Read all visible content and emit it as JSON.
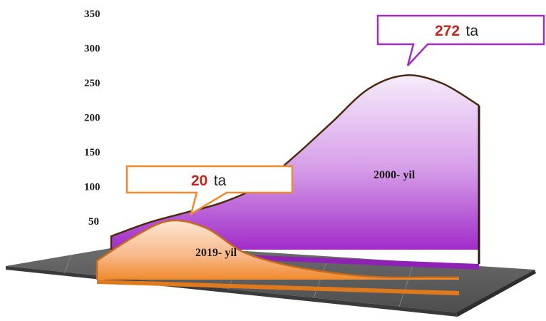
{
  "chart_data": {
    "type": "area",
    "yticks": [
      "350",
      "300",
      "250",
      "200",
      "150",
      "100",
      "50"
    ],
    "ylim": [
      0,
      350
    ],
    "grid": false,
    "series": [
      {
        "name": "2000- yil",
        "color": "#a12cc9",
        "values": [
          20,
          40,
          55,
          70,
          95,
          140,
          190,
          240,
          260,
          248,
          215
        ]
      },
      {
        "name": "2019- yil",
        "color": "#f08a2c",
        "values": [
          8,
          18,
          25,
          22,
          12,
          7,
          4,
          2,
          1,
          1,
          1
        ]
      }
    ],
    "callouts": [
      {
        "value": "20",
        "unit": "ta",
        "border_color": "#f08a2c"
      },
      {
        "value": "272",
        "unit": "ta",
        "border_color": "#a12cc9"
      }
    ]
  }
}
